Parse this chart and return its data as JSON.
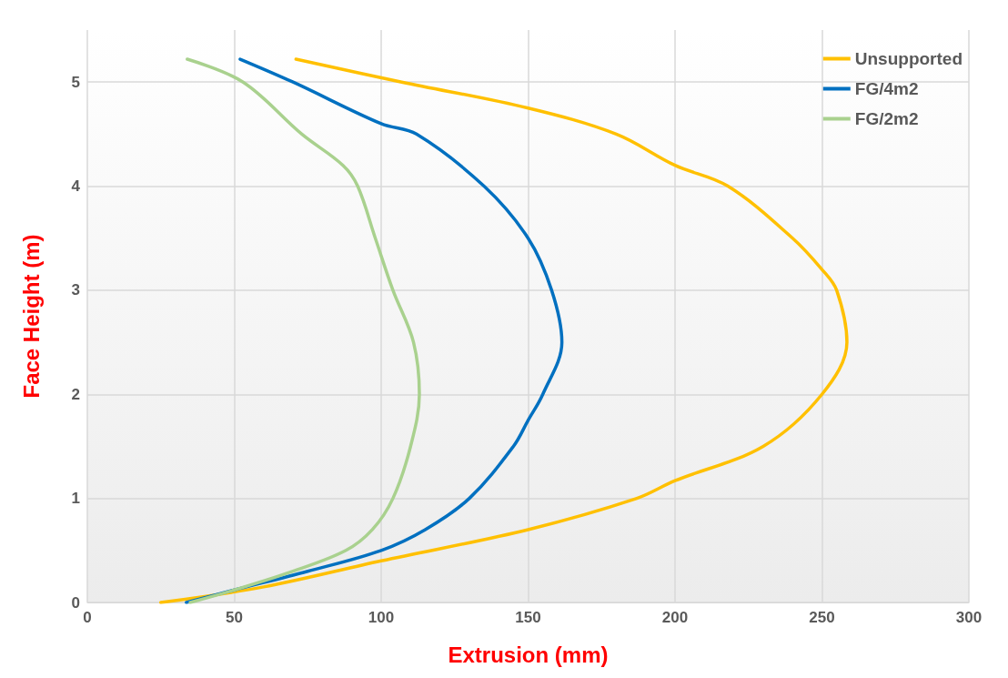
{
  "chart_data": {
    "type": "line",
    "xlabel": "Extrusion (mm)",
    "ylabel": "Face Height (m)",
    "xlim": [
      0,
      300
    ],
    "xticks": [
      0,
      50,
      100,
      150,
      200,
      250,
      300
    ],
    "ylim": [
      0,
      5.5
    ],
    "yticks": [
      0,
      1,
      2,
      3,
      4,
      5
    ],
    "grid": true,
    "legend": "top right",
    "marker": "none",
    "line_style": "solid",
    "series": [
      {
        "name": "Unsupported",
        "color": "#ffc000",
        "x": [
          25,
          60,
          100,
          150,
          187,
          200,
          230,
          250,
          258.5,
          255,
          250,
          240,
          218,
          200,
          180,
          150,
          107,
          71
        ],
        "values": [
          0,
          0.15,
          0.4,
          0.7,
          1.0,
          1.17,
          1.5,
          2,
          2.5,
          3,
          3.2,
          3.5,
          4,
          4.2,
          4.5,
          4.75,
          5,
          5.22
        ]
      },
      {
        "name": "FG/4m2",
        "color": "#0070c0",
        "x": [
          33.7,
          50,
          75,
          100,
          115,
          130,
          145,
          150,
          155,
          161.5,
          158,
          150,
          135,
          112,
          100,
          70,
          52
        ],
        "values": [
          0,
          0.12,
          0.3,
          0.5,
          0.7,
          1.0,
          1.5,
          1.75,
          2,
          2.5,
          3,
          3.5,
          4,
          4.5,
          4.6,
          5,
          5.22
        ]
      },
      {
        "name": "FG/2m2",
        "color": "#a9d18e",
        "x": [
          35,
          50,
          70,
          88,
          97,
          104,
          110,
          113,
          111,
          104,
          98,
          92,
          87,
          73,
          53,
          34
        ],
        "values": [
          0,
          0.12,
          0.3,
          0.5,
          0.7,
          1,
          1.5,
          2,
          2.5,
          3,
          3.5,
          4,
          4.2,
          4.5,
          5,
          5.22
        ]
      }
    ]
  }
}
